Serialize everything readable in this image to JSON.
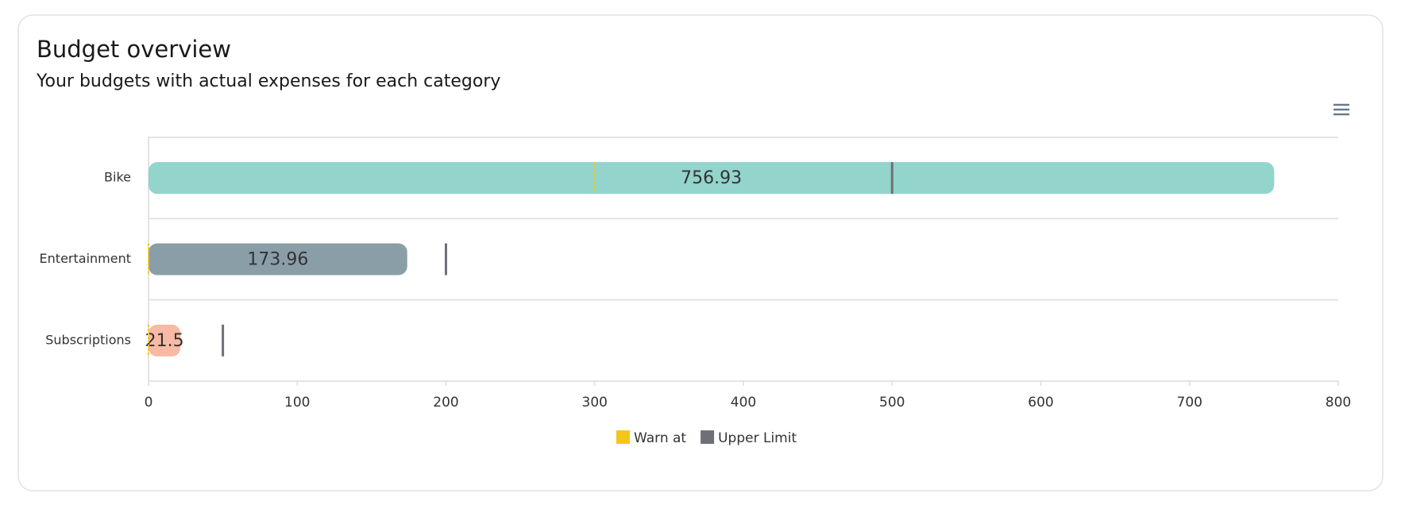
{
  "chart_data": {
    "type": "bar",
    "title": "Budget overview",
    "subtitle": "Your budgets with actual expenses for each category",
    "categories": [
      "Bike",
      "Entertainment",
      "Subscriptions"
    ],
    "values": [
      756.93,
      173.96,
      21.5
    ],
    "colors": [
      "#93d4cc",
      "#8a9ea8",
      "#f8b9a5"
    ],
    "markers": [
      {
        "name": "Warn at",
        "color": "#f5c518",
        "values": [
          300,
          0,
          0
        ]
      },
      {
        "name": "Upper Limit",
        "color": "#6e7078",
        "values": [
          500,
          200,
          50
        ]
      }
    ],
    "xlim": [
      0,
      800
    ],
    "xticks": [
      0,
      100,
      200,
      300,
      400,
      500,
      600,
      700,
      800
    ],
    "grid": true
  }
}
